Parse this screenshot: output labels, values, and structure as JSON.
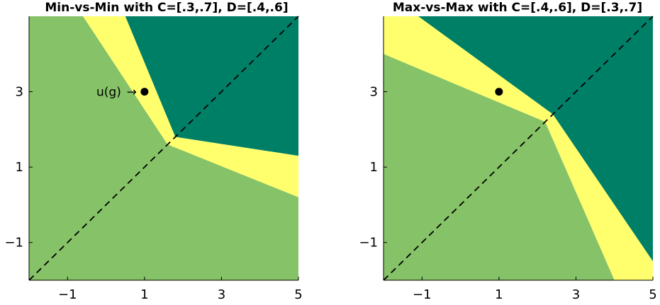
{
  "colors": {
    "region_a": "#86c267",
    "region_b": "#ffff6e",
    "region_c": "#007f67",
    "diagonal": "#000000",
    "point": "#000000"
  },
  "chart_data": [
    {
      "type": "area",
      "title": "Min-vs-Min with C=[.3,.7], D=[.4,.6]",
      "xlabel": "",
      "ylabel": "",
      "xlim": [
        -2,
        5
      ],
      "ylim": [
        -2,
        5
      ],
      "xticks": [
        -1,
        1,
        3,
        5
      ],
      "yticks": [
        -1,
        1,
        3
      ],
      "xtick_labels": [
        "−1",
        "1",
        "3",
        "5"
      ],
      "ytick_labels": [
        "−1",
        "1",
        "3"
      ],
      "diagonal": {
        "from": [
          -2,
          -2
        ],
        "to": [
          5,
          5
        ],
        "style": "dashed"
      },
      "regions": [
        {
          "fill": "region_c",
          "polygon": [
            [
              0.5,
              5
            ],
            [
              5,
              5
            ],
            [
              5,
              1.3
            ],
            [
              1.8,
              1.8
            ]
          ]
        },
        {
          "fill": "region_b",
          "polygon": [
            [
              -0.6,
              5
            ],
            [
              0.5,
              5
            ],
            [
              1.8,
              1.8
            ],
            [
              5,
              1.3
            ],
            [
              5,
              0.2
            ],
            [
              1.6,
              1.6
            ]
          ]
        },
        {
          "fill": "region_a",
          "polygon": [
            [
              -2,
              5
            ],
            [
              -0.6,
              5
            ],
            [
              1.6,
              1.6
            ],
            [
              5,
              0.2
            ],
            [
              5,
              -2
            ],
            [
              -2,
              -2
            ]
          ]
        }
      ],
      "points": [
        {
          "x": 1,
          "y": 3,
          "label": "u(g)"
        }
      ],
      "annotation_arrow": "→"
    },
    {
      "type": "area",
      "title": "Max-vs-Max with C=[.4,.6], D=[.3,.7]",
      "xlabel": "",
      "ylabel": "",
      "xlim": [
        -2,
        5
      ],
      "ylim": [
        -2,
        5
      ],
      "xticks": [
        -1,
        1,
        3,
        5
      ],
      "yticks": [
        -1,
        1,
        3
      ],
      "xtick_labels": [
        "−1",
        "1",
        "3",
        "5"
      ],
      "ytick_labels": [
        "−1",
        "1",
        "3"
      ],
      "diagonal": {
        "from": [
          -2,
          -2
        ],
        "to": [
          5,
          5
        ],
        "style": "dashed"
      },
      "regions": [
        {
          "fill": "region_c",
          "polygon": [
            [
              -1.1,
              5
            ],
            [
              5,
              5
            ],
            [
              5,
              -1.5
            ],
            [
              2.4,
              2.4
            ]
          ]
        },
        {
          "fill": "region_b",
          "polygon": [
            [
              -2,
              5
            ],
            [
              -1.1,
              5
            ],
            [
              2.4,
              2.4
            ],
            [
              5,
              -1.5
            ],
            [
              5,
              -2
            ],
            [
              4,
              -2
            ],
            [
              2.2,
              2.2
            ],
            [
              -2,
              4
            ]
          ]
        },
        {
          "fill": "region_a",
          "polygon": [
            [
              -2,
              4
            ],
            [
              2.2,
              2.2
            ],
            [
              4,
              -2
            ],
            [
              -2,
              -2
            ]
          ]
        }
      ],
      "points": [
        {
          "x": 1,
          "y": 3
        }
      ]
    }
  ]
}
